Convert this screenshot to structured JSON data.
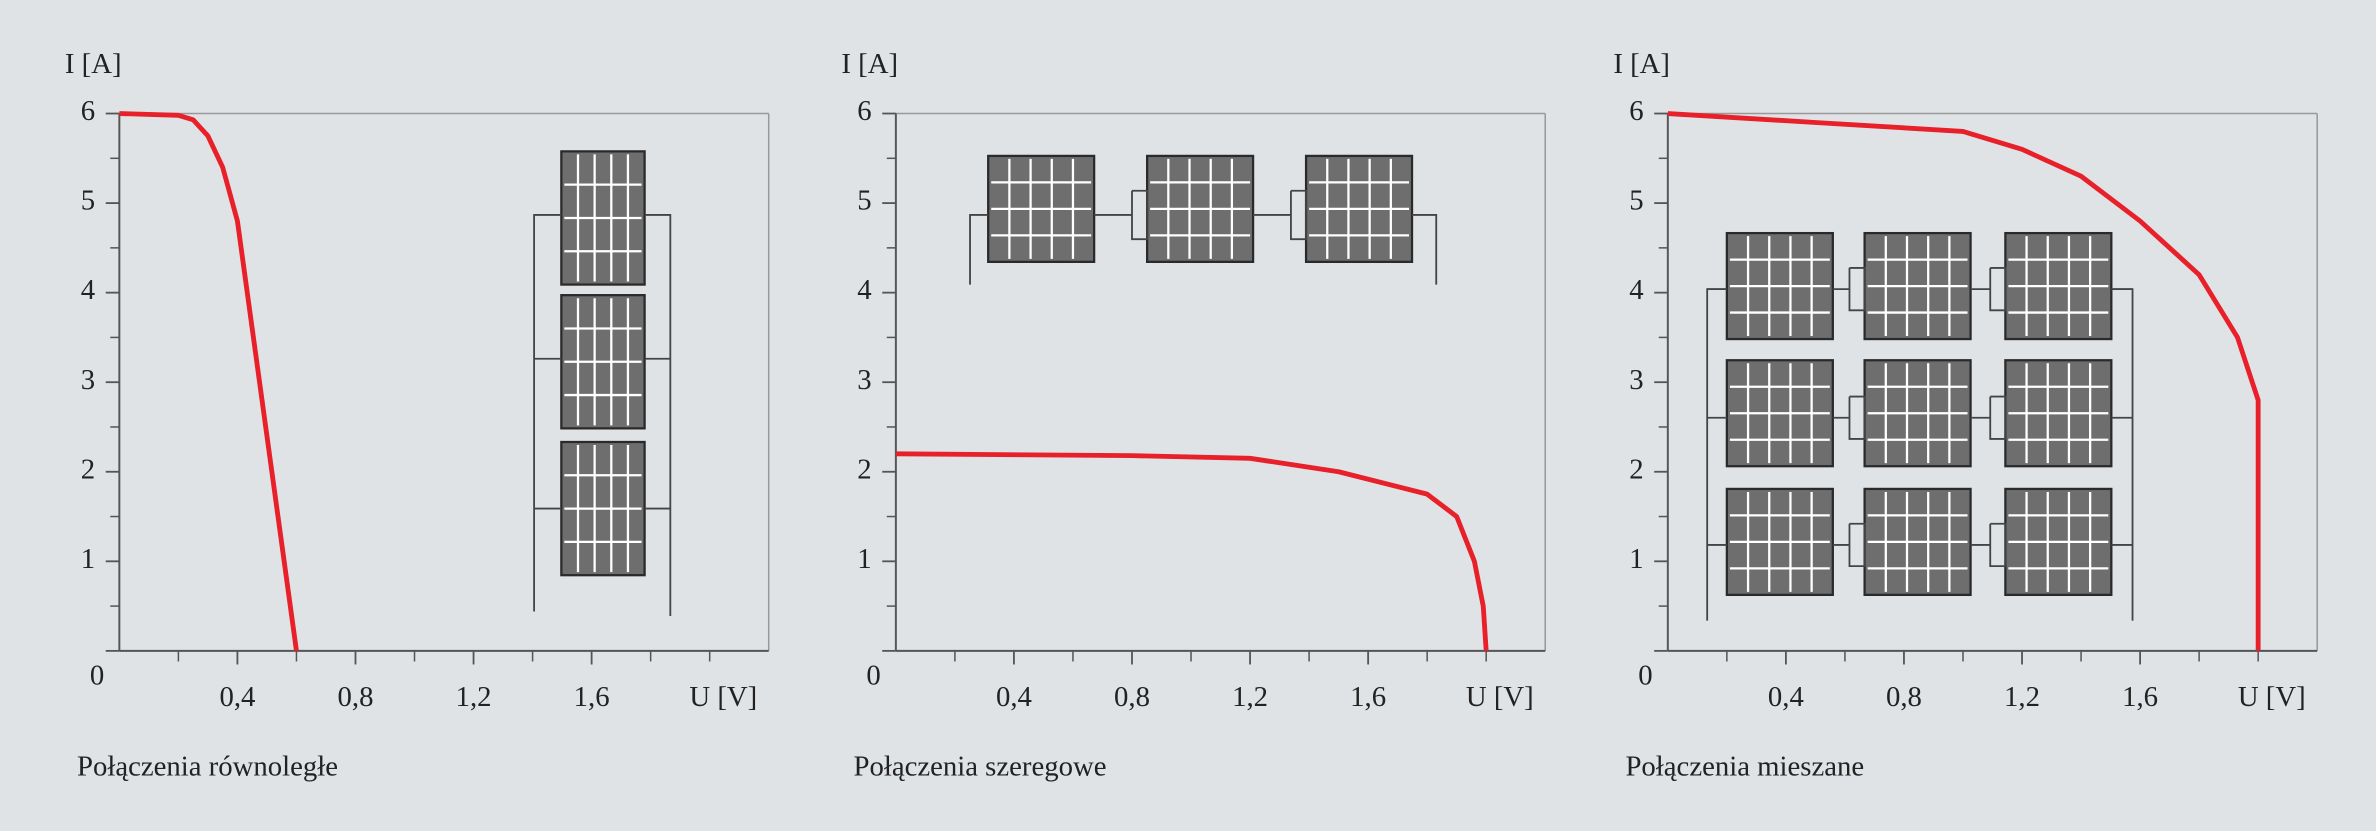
{
  "chart_data": [
    {
      "type": "line",
      "title": "Połączenia równoległe",
      "xlabel": "U [V]",
      "ylabel": "I [A]",
      "x": [
        0,
        0.2,
        0.25,
        0.3,
        0.35,
        0.4,
        0.5,
        0.6
      ],
      "series": [
        {
          "color": "#e8202a",
          "values": [
            6,
            5.98,
            5.93,
            5.75,
            5.4,
            4.8,
            2.4,
            0
          ]
        }
      ],
      "xlim": [
        0,
        2.2
      ],
      "ylim": [
        0,
        6
      ],
      "xticks": [
        {
          "value": 0.4,
          "label": "0,4"
        },
        {
          "value": 0.8,
          "label": "0,8"
        },
        {
          "value": 1.2,
          "label": "1,2"
        },
        {
          "value": 1.6,
          "label": "1,6"
        }
      ],
      "xminorticks": [
        0.2,
        0.6,
        1.0,
        1.4,
        1.8,
        2.0
      ],
      "yticks": [
        0,
        1,
        2,
        3,
        4,
        5,
        6
      ],
      "yminorticks": [
        0.5,
        1.5,
        2.5,
        3.5,
        4.5,
        5.5
      ]
    },
    {
      "type": "line",
      "title": "Połączenia szeregowe",
      "xlabel": "U [V]",
      "ylabel": "I [A]",
      "x": [
        0,
        0.8,
        1.2,
        1.5,
        1.8,
        1.9,
        1.96,
        1.99,
        2.0
      ],
      "series": [
        {
          "color": "#e8202a",
          "values": [
            2.2,
            2.18,
            2.15,
            2.0,
            1.75,
            1.5,
            1.0,
            0.5,
            0
          ]
        }
      ],
      "xlim": [
        0,
        2.2
      ],
      "ylim": [
        0,
        6
      ],
      "xticks": [
        {
          "value": 0.4,
          "label": "0,4"
        },
        {
          "value": 0.8,
          "label": "0,8"
        },
        {
          "value": 1.2,
          "label": "1,2"
        },
        {
          "value": 1.6,
          "label": "1,6"
        }
      ],
      "xminorticks": [
        0.2,
        0.6,
        1.0,
        1.4,
        1.8,
        2.0
      ],
      "yticks": [
        0,
        1,
        2,
        3,
        4,
        5,
        6
      ],
      "yminorticks": [
        0.5,
        1.5,
        2.5,
        3.5,
        4.5,
        5.5
      ]
    },
    {
      "type": "line",
      "title": "Połączenia mieszane",
      "xlabel": "U [V]",
      "ylabel": "I [A]",
      "x": [
        0,
        0.5,
        1.0,
        1.2,
        1.4,
        1.6,
        1.8,
        1.93,
        2.0,
        2.0
      ],
      "series": [
        {
          "color": "#e8202a",
          "values": [
            6,
            5.9,
            5.8,
            5.6,
            5.3,
            4.8,
            4.2,
            3.5,
            2.8,
            0
          ]
        }
      ],
      "xlim": [
        0,
        2.2
      ],
      "ylim": [
        0,
        6
      ],
      "xticks": [
        {
          "value": 0.4,
          "label": "0,4"
        },
        {
          "value": 0.8,
          "label": "0,8"
        },
        {
          "value": 1.2,
          "label": "1,2"
        },
        {
          "value": 1.6,
          "label": "1,6"
        }
      ],
      "xminorticks": [
        0.2,
        0.6,
        1.0,
        1.4,
        1.8,
        2.0
      ],
      "yticks": [
        0,
        1,
        2,
        3,
        4,
        5,
        6
      ],
      "yminorticks": [
        0.5,
        1.5,
        2.5,
        3.5,
        4.5,
        5.5
      ]
    }
  ]
}
